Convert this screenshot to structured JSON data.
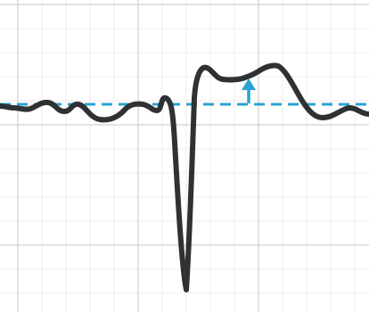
{
  "diagram": {
    "type": "ecg-trace",
    "description_visible_text": "",
    "colors": {
      "background": "#ffffff",
      "grid_minor": "#ececec",
      "grid_major": "#d2d2d2",
      "trace": "#2f3132",
      "baseline": "#2aa3d1",
      "arrow": "#2aa3d1"
    },
    "elements": {
      "grid": "ecg-grid",
      "trace": "ecg-waveform",
      "baseline": "isoelectric-baseline-dashed",
      "arrow": "st-elevation-up-arrow"
    }
  }
}
